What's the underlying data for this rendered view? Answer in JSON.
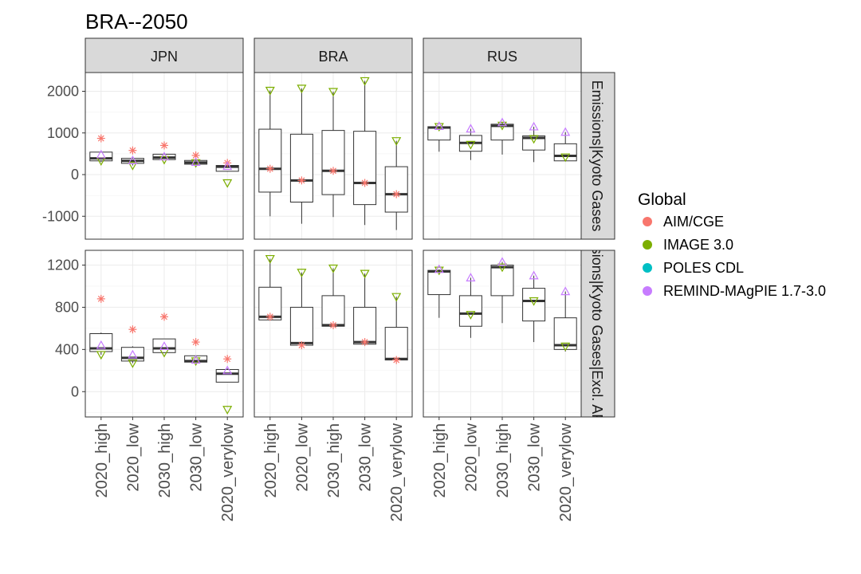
{
  "chart_data": {
    "type": "boxplot",
    "title": "BRA--2050",
    "categories": [
      "2020_high",
      "2020_low",
      "2030_high",
      "2030_low",
      "2020_verylow"
    ],
    "facets": {
      "columns": [
        "JPN",
        "BRA",
        "RUS"
      ],
      "rows": [
        "Emissions|Kyoto Gases",
        "Emissions|Kyoto Gases|Excl. AFOLU"
      ]
    },
    "legend": {
      "title": "Global",
      "placement": "right",
      "entries": [
        {
          "name": "AIM/CGE",
          "color": "#F8766D"
        },
        {
          "name": "IMAGE 3.0",
          "color": "#7CAE00"
        },
        {
          "name": "POLES CDL",
          "color": "#00BFC4"
        },
        {
          "name": "REMIND-MAgPIE 1.7-3.0",
          "color": "#C77CFF"
        }
      ]
    },
    "y_axes": [
      {
        "row": 0,
        "range": [
          -1550,
          2450
        ],
        "ticks": [
          -1000,
          0,
          1000,
          2000
        ]
      },
      {
        "row": 1,
        "range": [
          -240,
          1340
        ],
        "ticks": [
          0,
          400,
          800,
          1200
        ]
      }
    ],
    "grid": true,
    "panels": [
      {
        "row": 0,
        "col": 0,
        "boxes": [
          {
            "min": 300,
            "q1": 330,
            "median": 390,
            "q3": 540,
            "max": 560,
            "points": [
              {
                "model": "AIM/CGE",
                "y": 870
              },
              {
                "model": "IMAGE 3.0",
                "y": 330
              },
              {
                "model": "REMIND-MAgPIE 1.7-3.0",
                "y": 480
              }
            ]
          },
          {
            "min": 220,
            "q1": 270,
            "median": 330,
            "q3": 390,
            "max": 400,
            "points": [
              {
                "model": "AIM/CGE",
                "y": 580
              },
              {
                "model": "IMAGE 3.0",
                "y": 220
              },
              {
                "model": "REMIND-MAgPIE 1.7-3.0",
                "y": 340
              }
            ]
          },
          {
            "min": 350,
            "q1": 360,
            "median": 410,
            "q3": 490,
            "max": 500,
            "points": [
              {
                "model": "AIM/CGE",
                "y": 700
              },
              {
                "model": "IMAGE 3.0",
                "y": 360
              },
              {
                "model": "REMIND-MAgPIE 1.7-3.0",
                "y": 430
              }
            ]
          },
          {
            "min": 250,
            "q1": 250,
            "median": 290,
            "q3": 340,
            "max": 350,
            "points": [
              {
                "model": "AIM/CGE",
                "y": 460
              },
              {
                "model": "IMAGE 3.0",
                "y": 280
              },
              {
                "model": "REMIND-MAgPIE 1.7-3.0",
                "y": 300
              }
            ]
          },
          {
            "min": 70,
            "q1": 80,
            "median": 190,
            "q3": 220,
            "max": 230,
            "points": [
              {
                "model": "AIM/CGE",
                "y": 280
              },
              {
                "model": "IMAGE 3.0",
                "y": -200
              },
              {
                "model": "REMIND-MAgPIE 1.7-3.0",
                "y": 200
              }
            ]
          }
        ]
      },
      {
        "row": 0,
        "col": 1,
        "boxes": [
          {
            "min": -1000,
            "q1": -420,
            "median": 140,
            "q3": 1090,
            "max": 2020,
            "points": [
              {
                "model": "AIM/CGE",
                "y": 140
              },
              {
                "model": "IMAGE 3.0",
                "y": 2020
              }
            ]
          },
          {
            "min": -1180,
            "q1": -660,
            "median": -140,
            "q3": 970,
            "max": 2070,
            "points": [
              {
                "model": "AIM/CGE",
                "y": -140
              },
              {
                "model": "IMAGE 3.0",
                "y": 2070
              }
            ]
          },
          {
            "min": -1020,
            "q1": -480,
            "median": 90,
            "q3": 1060,
            "max": 1990,
            "points": [
              {
                "model": "AIM/CGE",
                "y": 90
              },
              {
                "model": "IMAGE 3.0",
                "y": 1990
              }
            ]
          },
          {
            "min": -1210,
            "q1": -720,
            "median": -200,
            "q3": 1040,
            "max": 2250,
            "points": [
              {
                "model": "AIM/CGE",
                "y": -200
              },
              {
                "model": "IMAGE 3.0",
                "y": 2250
              }
            ]
          },
          {
            "min": -1330,
            "q1": -900,
            "median": -470,
            "q3": 190,
            "max": 810,
            "points": [
              {
                "model": "AIM/CGE",
                "y": -470
              },
              {
                "model": "IMAGE 3.0",
                "y": 810
              }
            ]
          }
        ]
      },
      {
        "row": 0,
        "col": 2,
        "boxes": [
          {
            "min": 550,
            "q1": 830,
            "median": 1130,
            "q3": 1150,
            "max": 1160,
            "points": [
              {
                "model": "IMAGE 3.0",
                "y": 1150
              },
              {
                "model": "REMIND-MAgPIE 1.7-3.0",
                "y": 1160
              }
            ]
          },
          {
            "min": 350,
            "q1": 560,
            "median": 760,
            "q3": 940,
            "max": 1100,
            "points": [
              {
                "model": "IMAGE 3.0",
                "y": 720
              },
              {
                "model": "REMIND-MAgPIE 1.7-3.0",
                "y": 1100
              }
            ]
          },
          {
            "min": 480,
            "q1": 830,
            "median": 1170,
            "q3": 1210,
            "max": 1250,
            "points": [
              {
                "model": "IMAGE 3.0",
                "y": 1180
              },
              {
                "model": "REMIND-MAgPIE 1.7-3.0",
                "y": 1250
              }
            ]
          },
          {
            "min": 300,
            "q1": 590,
            "median": 880,
            "q3": 930,
            "max": 1150,
            "points": [
              {
                "model": "IMAGE 3.0",
                "y": 860
              },
              {
                "model": "REMIND-MAgPIE 1.7-3.0",
                "y": 1150
              }
            ]
          },
          {
            "min": 330,
            "q1": 330,
            "median": 450,
            "q3": 740,
            "max": 1020,
            "points": [
              {
                "model": "IMAGE 3.0",
                "y": 420
              },
              {
                "model": "REMIND-MAgPIE 1.7-3.0",
                "y": 1020
              }
            ]
          }
        ]
      },
      {
        "row": 1,
        "col": 0,
        "boxes": [
          {
            "min": 350,
            "q1": 380,
            "median": 410,
            "q3": 550,
            "max": 560,
            "points": [
              {
                "model": "AIM/CGE",
                "y": 880
              },
              {
                "model": "IMAGE 3.0",
                "y": 350
              },
              {
                "model": "REMIND-MAgPIE 1.7-3.0",
                "y": 440
              }
            ]
          },
          {
            "min": 270,
            "q1": 290,
            "median": 320,
            "q3": 420,
            "max": 430,
            "points": [
              {
                "model": "AIM/CGE",
                "y": 590
              },
              {
                "model": "IMAGE 3.0",
                "y": 270
              },
              {
                "model": "REMIND-MAgPIE 1.7-3.0",
                "y": 350
              }
            ]
          },
          {
            "min": 370,
            "q1": 370,
            "median": 410,
            "q3": 500,
            "max": 500,
            "points": [
              {
                "model": "AIM/CGE",
                "y": 710
              },
              {
                "model": "IMAGE 3.0",
                "y": 370
              },
              {
                "model": "REMIND-MAgPIE 1.7-3.0",
                "y": 430
              }
            ]
          },
          {
            "min": 280,
            "q1": 280,
            "median": 290,
            "q3": 340,
            "max": 340,
            "points": [
              {
                "model": "AIM/CGE",
                "y": 470
              },
              {
                "model": "IMAGE 3.0",
                "y": 290
              },
              {
                "model": "REMIND-MAgPIE 1.7-3.0",
                "y": 300
              }
            ]
          },
          {
            "min": 90,
            "q1": 90,
            "median": 170,
            "q3": 210,
            "max": 220,
            "points": [
              {
                "model": "AIM/CGE",
                "y": 310
              },
              {
                "model": "IMAGE 3.0",
                "y": -170
              },
              {
                "model": "REMIND-MAgPIE 1.7-3.0",
                "y": 200
              }
            ]
          }
        ]
      },
      {
        "row": 1,
        "col": 1,
        "boxes": [
          {
            "min": 680,
            "q1": 680,
            "median": 710,
            "q3": 990,
            "max": 1260,
            "points": [
              {
                "model": "AIM/CGE",
                "y": 710
              },
              {
                "model": "IMAGE 3.0",
                "y": 1260
              }
            ]
          },
          {
            "min": 440,
            "q1": 440,
            "median": 460,
            "q3": 800,
            "max": 1130,
            "points": [
              {
                "model": "AIM/CGE",
                "y": 440
              },
              {
                "model": "IMAGE 3.0",
                "y": 1130
              }
            ]
          },
          {
            "min": 620,
            "q1": 620,
            "median": 630,
            "q3": 910,
            "max": 1170,
            "points": [
              {
                "model": "AIM/CGE",
                "y": 630
              },
              {
                "model": "IMAGE 3.0",
                "y": 1170
              }
            ]
          },
          {
            "min": 450,
            "q1": 450,
            "median": 470,
            "q3": 800,
            "max": 1120,
            "points": [
              {
                "model": "AIM/CGE",
                "y": 470
              },
              {
                "model": "IMAGE 3.0",
                "y": 1120
              }
            ]
          },
          {
            "min": 300,
            "q1": 300,
            "median": 310,
            "q3": 610,
            "max": 900,
            "points": [
              {
                "model": "AIM/CGE",
                "y": 300
              },
              {
                "model": "IMAGE 3.0",
                "y": 900
              }
            ]
          }
        ]
      },
      {
        "row": 1,
        "col": 2,
        "boxes": [
          {
            "min": 700,
            "q1": 920,
            "median": 1140,
            "q3": 1150,
            "max": 1160,
            "points": [
              {
                "model": "IMAGE 3.0",
                "y": 1150
              },
              {
                "model": "REMIND-MAgPIE 1.7-3.0",
                "y": 1160
              }
            ]
          },
          {
            "min": 510,
            "q1": 620,
            "median": 740,
            "q3": 910,
            "max": 1080,
            "points": [
              {
                "model": "IMAGE 3.0",
                "y": 730
              },
              {
                "model": "REMIND-MAgPIE 1.7-3.0",
                "y": 1080
              }
            ]
          },
          {
            "min": 650,
            "q1": 910,
            "median": 1180,
            "q3": 1200,
            "max": 1230,
            "points": [
              {
                "model": "IMAGE 3.0",
                "y": 1180
              },
              {
                "model": "REMIND-MAgPIE 1.7-3.0",
                "y": 1230
              }
            ]
          },
          {
            "min": 470,
            "q1": 670,
            "median": 860,
            "q3": 980,
            "max": 1100,
            "points": [
              {
                "model": "IMAGE 3.0",
                "y": 860
              },
              {
                "model": "REMIND-MAgPIE 1.7-3.0",
                "y": 1100
              }
            ]
          },
          {
            "min": 380,
            "q1": 400,
            "median": 440,
            "q3": 700,
            "max": 950,
            "points": [
              {
                "model": "IMAGE 3.0",
                "y": 430
              },
              {
                "model": "REMIND-MAgPIE 1.7-3.0",
                "y": 950
              }
            ]
          }
        ]
      }
    ]
  }
}
